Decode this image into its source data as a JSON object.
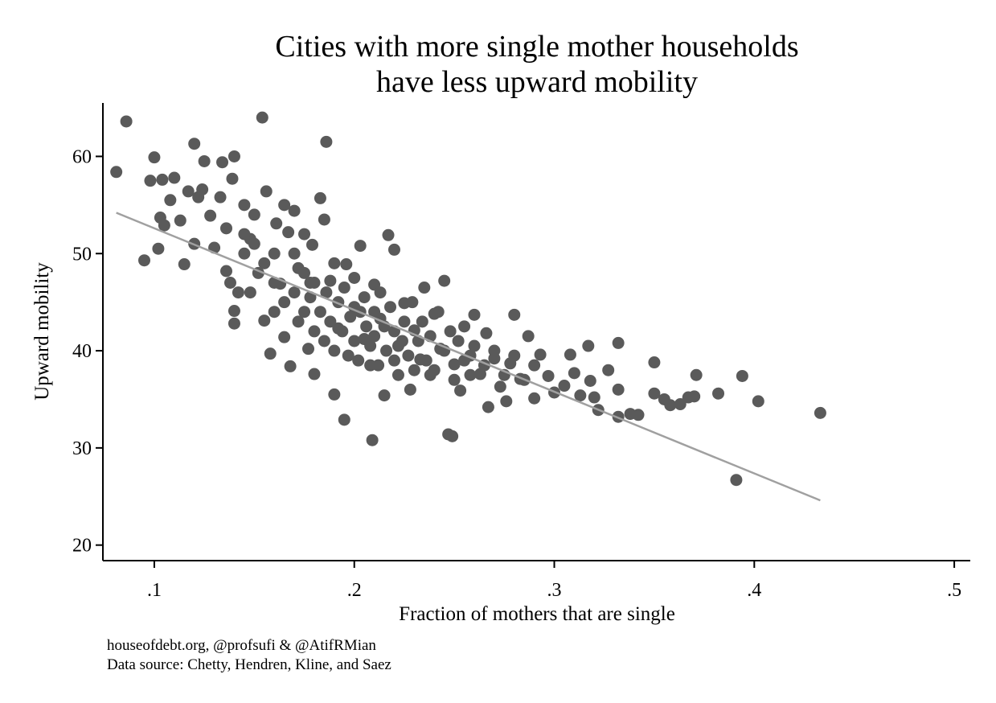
{
  "chart_data": {
    "type": "scatter",
    "title": [
      "Cities with more single mother households",
      "have less upward mobility"
    ],
    "xlabel": "Fraction of mothers that are single",
    "ylabel": "Upward mobility",
    "notes": [
      "houseofdebt.org, @profsufi & @AtifRMian",
      "Data source: Chetty, Hendren, Kline, and Saez"
    ],
    "color": "#5a5a5a",
    "xlim": [
      0.0743,
      0.508
    ],
    "ylim": [
      18.4,
      65.5
    ],
    "xticks": [
      {
        "value": 0.1,
        "label": ".1"
      },
      {
        "value": 0.2,
        "label": ".2"
      },
      {
        "value": 0.3,
        "label": ".3"
      },
      {
        "value": 0.4,
        "label": ".4"
      },
      {
        "value": 0.5,
        "label": ".5"
      }
    ],
    "yticks": [
      20,
      30,
      40,
      50,
      60
    ],
    "grid": false,
    "x": [
      0.081,
      0.086,
      0.095,
      0.098,
      0.1,
      0.102,
      0.103,
      0.105,
      0.104,
      0.108,
      0.11,
      0.113,
      0.115,
      0.117,
      0.12,
      0.12,
      0.122,
      0.124,
      0.125,
      0.128,
      0.13,
      0.133,
      0.134,
      0.136,
      0.136,
      0.139,
      0.14,
      0.14,
      0.14,
      0.142,
      0.145,
      0.148,
      0.15,
      0.152,
      0.154,
      0.155,
      0.156,
      0.158,
      0.16,
      0.161,
      0.163,
      0.165,
      0.167,
      0.168,
      0.17,
      0.172,
      0.175,
      0.177,
      0.179,
      0.18,
      0.183,
      0.185,
      0.186,
      0.188,
      0.19,
      0.192,
      0.195,
      0.196,
      0.2,
      0.203,
      0.205,
      0.208,
      0.209,
      0.21,
      0.213,
      0.215,
      0.217,
      0.22,
      0.222,
      0.225,
      0.228,
      0.23,
      0.233,
      0.235,
      0.238,
      0.24,
      0.243,
      0.245,
      0.247,
      0.249,
      0.25,
      0.253,
      0.255,
      0.258,
      0.26,
      0.263,
      0.266,
      0.267,
      0.27,
      0.273,
      0.276,
      0.278,
      0.28,
      0.283,
      0.287,
      0.29,
      0.293,
      0.297,
      0.3,
      0.305,
      0.308,
      0.31,
      0.313,
      0.317,
      0.318,
      0.32,
      0.322,
      0.327,
      0.332,
      0.332,
      0.332,
      0.338,
      0.342,
      0.35,
      0.35,
      0.355,
      0.358,
      0.363,
      0.367,
      0.37,
      0.371,
      0.382,
      0.391,
      0.394,
      0.402,
      0.433,
      0.16,
      0.165,
      0.17,
      0.172,
      0.175,
      0.178,
      0.18,
      0.18,
      0.183,
      0.185,
      0.186,
      0.188,
      0.19,
      0.19,
      0.192,
      0.194,
      0.195,
      0.197,
      0.198,
      0.2,
      0.2,
      0.202,
      0.203,
      0.205,
      0.206,
      0.208,
      0.21,
      0.21,
      0.212,
      0.213,
      0.215,
      0.216,
      0.218,
      0.22,
      0.22,
      0.222,
      0.224,
      0.225,
      0.227,
      0.229,
      0.23,
      0.232,
      0.234,
      0.236,
      0.238,
      0.24,
      0.242,
      0.245,
      0.248,
      0.25,
      0.252,
      0.255,
      0.258,
      0.26,
      0.265,
      0.27,
      0.275,
      0.28,
      0.285,
      0.29,
      0.15,
      0.155,
      0.145,
      0.148,
      0.16,
      0.17,
      0.175,
      0.178,
      0.165,
      0.145,
      0.138
    ],
    "values": [
      58.4,
      63.6,
      49.3,
      57.5,
      59.9,
      50.5,
      53.7,
      52.9,
      57.6,
      55.5,
      57.8,
      53.4,
      48.9,
      56.4,
      61.3,
      51,
      55.8,
      56.6,
      59.5,
      53.9,
      50.6,
      55.8,
      59.4,
      52.6,
      48.2,
      57.7,
      60,
      44.1,
      42.8,
      46,
      55,
      51.5,
      54,
      48,
      64,
      43.1,
      56.4,
      39.7,
      50,
      53.1,
      46.9,
      41.4,
      52.2,
      38.4,
      54.4,
      48.5,
      44,
      40.2,
      50.9,
      37.6,
      55.7,
      53.5,
      61.5,
      47.2,
      35.5,
      42.3,
      32.9,
      48.9,
      44.5,
      50.8,
      41.2,
      38.5,
      30.8,
      46.8,
      43.3,
      35.4,
      51.9,
      50.4,
      40.5,
      44.9,
      36,
      42.1,
      39.1,
      46.5,
      37.5,
      43.8,
      40.2,
      47.2,
      31.4,
      31.2,
      38.6,
      35.9,
      42.5,
      39.5,
      43.7,
      37.6,
      41.8,
      34.2,
      39.2,
      36.3,
      34.8,
      38.7,
      43.7,
      37.1,
      41.5,
      35.1,
      39.6,
      37.4,
      35.7,
      36.4,
      39.6,
      37.7,
      35.4,
      40.5,
      36.9,
      35.2,
      33.9,
      38,
      40.8,
      36,
      33.2,
      33.5,
      33.4,
      38.8,
      35.6,
      35,
      34.4,
      34.5,
      35.2,
      35.3,
      37.5,
      35.6,
      26.7,
      37.4,
      34.8,
      33.6,
      47,
      45,
      46,
      43,
      48,
      45.5,
      42,
      47,
      44,
      41,
      46,
      43,
      49,
      40,
      45,
      42,
      46.5,
      39.5,
      43.5,
      41,
      47.5,
      39,
      44,
      45.5,
      42.5,
      40.5,
      44,
      41.5,
      38.5,
      46,
      42.5,
      40,
      44.5,
      39,
      42,
      37.5,
      41,
      43,
      39.5,
      45,
      38,
      41,
      43,
      39,
      41.5,
      38,
      44,
      40,
      42,
      37,
      41,
      39,
      37.5,
      40.5,
      38.5,
      40,
      37.5,
      39.5,
      37,
      38.5,
      51,
      49,
      52,
      46,
      44,
      50,
      52,
      47,
      55,
      50,
      47
    ],
    "fit": {
      "color": "#a0a0a0",
      "x": [
        0.081,
        0.433
      ],
      "values": [
        54.2,
        24.6
      ]
    }
  }
}
